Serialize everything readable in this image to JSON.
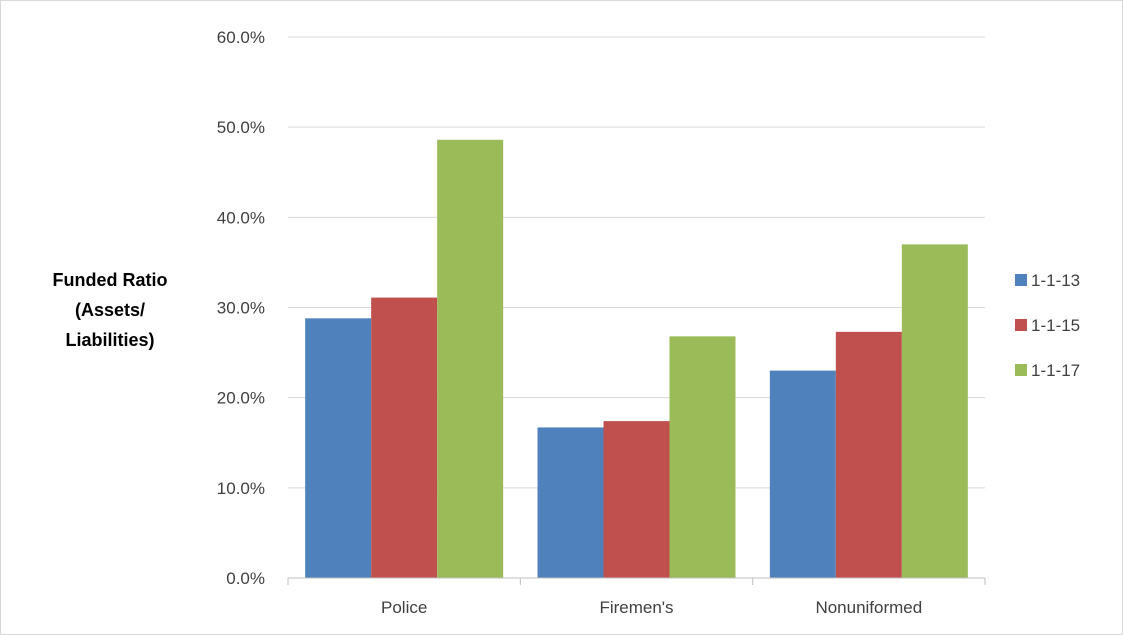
{
  "chart_data": {
    "type": "bar",
    "title": "",
    "xlabel": "",
    "ylabel_lines": [
      "Funded Ratio",
      "(Assets/",
      "Liabilities)"
    ],
    "categories": [
      "Police",
      "Firemen's",
      "Nonuniformed"
    ],
    "series": [
      {
        "name": "1-1-13",
        "values": [
          28.8,
          16.7,
          23.0
        ],
        "color": "#4f81bd"
      },
      {
        "name": "1-1-15",
        "values": [
          31.1,
          17.4,
          27.3
        ],
        "color": "#c0504d"
      },
      {
        "name": "1-1-17",
        "values": [
          48.6,
          26.8,
          37.0
        ],
        "color": "#9bbb59"
      }
    ],
    "ylim": [
      0,
      60
    ],
    "yticks": [
      0,
      10,
      20,
      30,
      40,
      50,
      60
    ],
    "ytick_labels": [
      "0.0%",
      "10.0%",
      "20.0%",
      "30.0%",
      "40.0%",
      "50.0%",
      "60.0%"
    ],
    "grid": true,
    "legend_position": "right"
  }
}
